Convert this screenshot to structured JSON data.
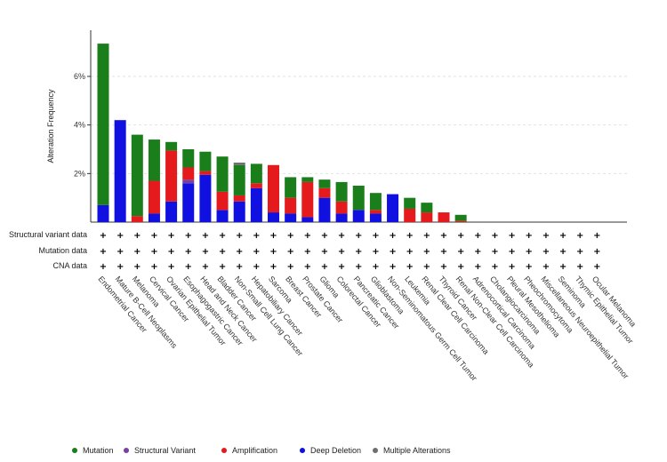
{
  "chart_data": {
    "type": "bar",
    "stacked": true,
    "ylabel": "Alteration Frequency",
    "y_ticks": [
      "2%",
      "4%",
      "6%"
    ],
    "ylim": [
      0,
      7.6
    ],
    "grid": "horizontal dashed",
    "categories": [
      "Endometrial Cancer",
      "Mature B-Cell Neoplasms",
      "Melanoma",
      "Cervical Cancer",
      "Ovarian Epithelial Tumor",
      "Esophagogastric Cancer",
      "Head and Neck Cancer",
      "Bladder Cancer",
      "Non-Small Cell Lung Cancer",
      "Hepatobiliary Cancer",
      "Sarcoma",
      "Breast Cancer",
      "Prostate Cancer",
      "Glioma",
      "Colorectal Cancer",
      "Pancreatic Cancer",
      "Glioblastoma",
      "Non-Seminomatous Germ Cell Tumor",
      "Leukemia",
      "Renal Clear Cell Carcinoma",
      "Thyroid Cancer",
      "Renal Non-Clear Cell Carcinoma",
      "Adrenocortical Carcinoma",
      "Cholangiocarcinoma",
      "Pleural Mesothelioma",
      "Pheochromocytoma",
      "Miscellaneous Neuroepithelial Tumor",
      "Seminoma",
      "Thymic Epithelial Tumor",
      "Ocular Melanoma"
    ],
    "series": [
      {
        "name": "Mutation",
        "color": "#1a7f1a",
        "values": [
          6.65,
          0,
          3.35,
          1.7,
          0.35,
          0.75,
          0.8,
          1.45,
          1.25,
          0.8,
          0,
          0.85,
          0.2,
          0.35,
          0.8,
          1.0,
          0.7,
          0,
          0.45,
          0.4,
          0,
          0.25,
          0,
          0,
          0,
          0,
          0,
          0,
          0,
          0
        ]
      },
      {
        "name": "Structural Variant",
        "color": "#7b3fa0",
        "values": [
          0,
          0,
          0,
          0,
          0,
          0.15,
          0,
          0,
          0,
          0,
          0,
          0,
          0,
          0,
          0,
          0,
          0,
          0,
          0,
          0,
          0,
          0,
          0,
          0,
          0,
          0,
          0,
          0,
          0,
          0
        ]
      },
      {
        "name": "Amplification",
        "color": "#e41a1c",
        "values": [
          0,
          0,
          0.25,
          1.35,
          2.1,
          0.5,
          0.15,
          0.75,
          0.25,
          0.2,
          1.95,
          0.65,
          1.45,
          0.4,
          0.5,
          0,
          0.15,
          0,
          0.55,
          0.4,
          0.4,
          0.05,
          0,
          0,
          0,
          0,
          0,
          0,
          0,
          0
        ]
      },
      {
        "name": "Deep Deletion",
        "color": "#1010e0",
        "values": [
          0.7,
          4.2,
          0,
          0.35,
          0.85,
          1.6,
          1.95,
          0.5,
          0.85,
          1.4,
          0.4,
          0.35,
          0.2,
          1.0,
          0.35,
          0.5,
          0.35,
          1.15,
          0,
          0,
          0,
          0,
          0,
          0,
          0,
          0,
          0,
          0,
          0,
          0
        ]
      },
      {
        "name": "Multiple Alterations",
        "color": "#6e6e6e",
        "values": [
          0,
          0,
          0,
          0,
          0,
          0,
          0,
          0,
          0.1,
          0,
          0,
          0,
          0,
          0,
          0,
          0,
          0,
          0,
          0,
          0,
          0,
          0,
          0,
          0,
          0,
          0,
          0,
          0,
          0,
          0
        ]
      }
    ],
    "profile_rows": [
      "Structural variant data",
      "Mutation data",
      "CNA data"
    ],
    "profile_marker": "+",
    "legend": {
      "placement": "bottom"
    }
  }
}
